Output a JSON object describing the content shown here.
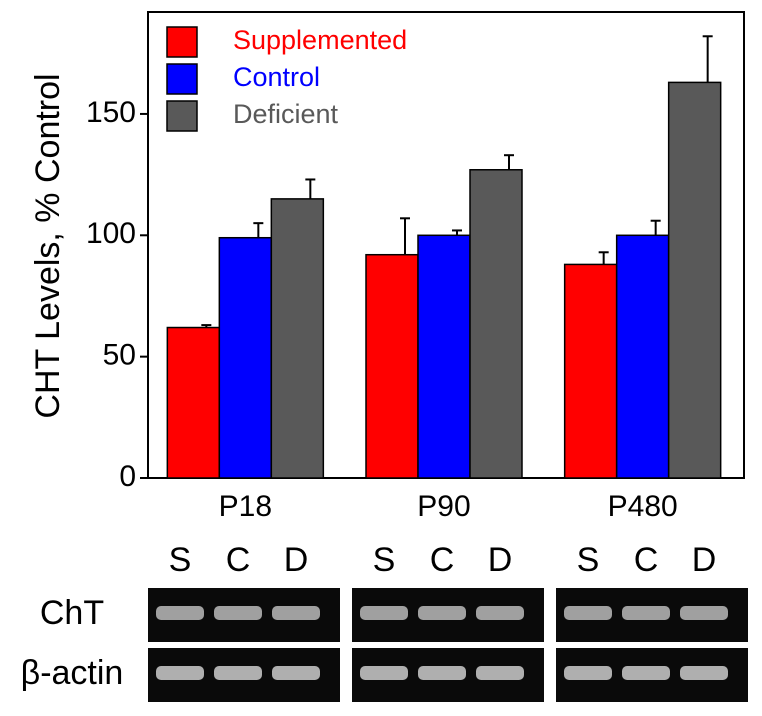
{
  "chart_data": {
    "type": "bar",
    "y_label": "CHT Levels, % Control",
    "categories": [
      "P18",
      "P90",
      "P480"
    ],
    "series": [
      {
        "name": "Supplemented",
        "color": "#ff0000",
        "values": [
          62,
          92,
          88
        ],
        "errors": [
          1,
          15,
          5
        ]
      },
      {
        "name": "Control",
        "color": "#0000ff",
        "values": [
          99,
          100,
          100
        ],
        "errors": [
          6,
          2,
          6
        ]
      },
      {
        "name": "Deficient",
        "color": "#595959",
        "values": [
          115,
          127,
          163
        ],
        "errors": [
          8,
          6,
          19
        ]
      }
    ],
    "ylim": [
      0,
      192
    ],
    "yticks": [
      0,
      50,
      100,
      150
    ],
    "legend": "upper-left"
  },
  "gel": {
    "lanes": [
      [
        "S",
        "C",
        "D"
      ],
      [
        "S",
        "C",
        "D"
      ],
      [
        "S",
        "C",
        "D"
      ]
    ],
    "rows": [
      "ChT",
      "β-actin"
    ]
  }
}
